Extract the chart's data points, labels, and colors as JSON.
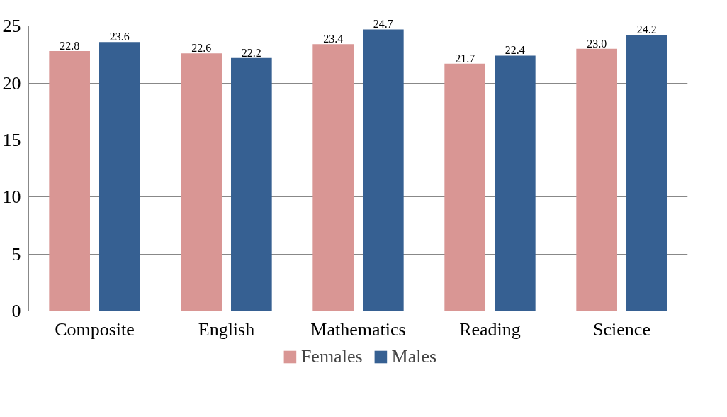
{
  "chart_data": {
    "type": "bar",
    "categories": [
      "Composite",
      "English",
      "Mathematics",
      "Reading",
      "Science"
    ],
    "series": [
      {
        "name": "Females",
        "color": "#d99694",
        "values": [
          22.8,
          22.6,
          23.4,
          21.7,
          23.0
        ],
        "value_labels": [
          "22.8",
          "22.6",
          "23.4",
          "21.7",
          "23.0"
        ]
      },
      {
        "name": "Males",
        "color": "#366092",
        "values": [
          23.6,
          22.2,
          24.7,
          22.4,
          24.2
        ],
        "value_labels": [
          "23.6",
          "22.2",
          "24.7",
          "22.4",
          "24.2"
        ]
      }
    ],
    "ylim": [
      0,
      25
    ],
    "yticks": [
      0,
      5,
      10,
      15,
      20,
      25
    ],
    "grid": "y",
    "legend": "bottom"
  }
}
